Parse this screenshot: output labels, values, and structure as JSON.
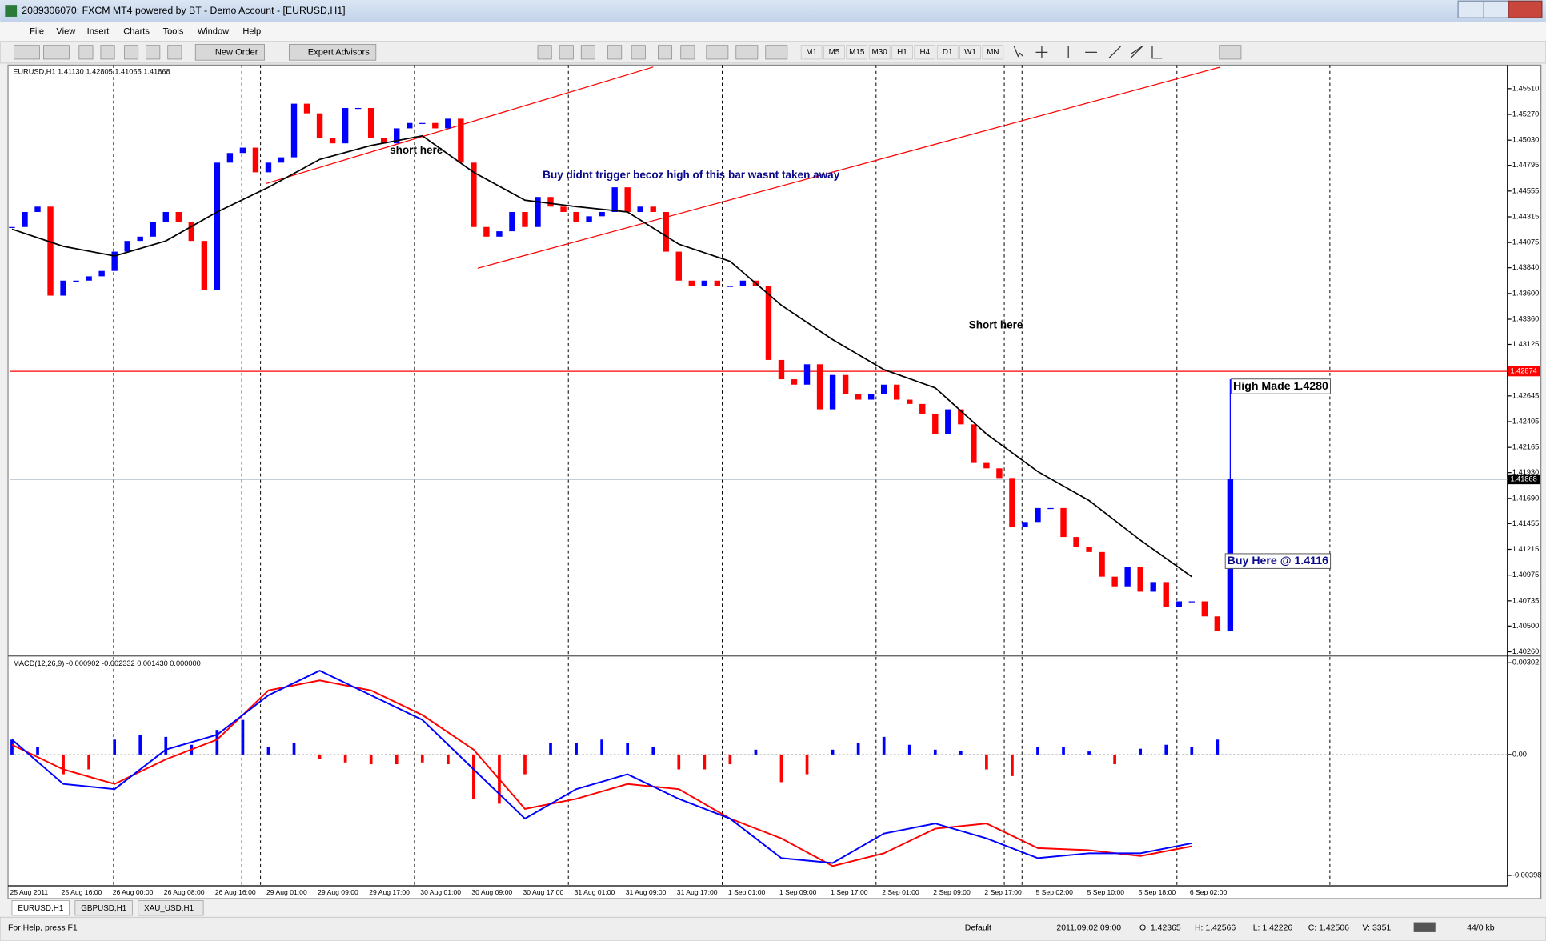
{
  "window": {
    "title": "2089306070: FXCM MT4 powered by BT - Demo Account - [EURUSD,H1]"
  },
  "menu": [
    "File",
    "View",
    "Insert",
    "Charts",
    "Tools",
    "Window",
    "Help"
  ],
  "toolbar": {
    "buttons": [
      "New Order",
      "Expert Advisors"
    ],
    "timeframes": [
      "M1",
      "M5",
      "M15",
      "M30",
      "H1",
      "H4",
      "D1",
      "W1",
      "MN"
    ]
  },
  "chart_data": [
    {
      "type": "candlestick",
      "header": "EURUSD,H1  1.41130 1.42805 1.41065 1.41868",
      "x_labels": [
        "25 Aug 2011",
        "25 Aug 16:00",
        "26 Aug 00:00",
        "26 Aug 08:00",
        "26 Aug 16:00",
        "29 Aug 01:00",
        "29 Aug 09:00",
        "29 Aug 17:00",
        "30 Aug 01:00",
        "30 Aug 09:00",
        "30 Aug 17:00",
        "31 Aug 01:00",
        "31 Aug 09:00",
        "31 Aug 17:00",
        "1 Sep 01:00",
        "1 Sep 09:00",
        "1 Sep 17:00",
        "2 Sep 01:00",
        "2 Sep 09:00",
        "2 Sep 17:00",
        "5 Sep 02:00",
        "5 Sep 10:00",
        "5 Sep 18:00",
        "6 Sep 02:00"
      ],
      "close": [
        1.4422,
        1.4436,
        1.4441,
        1.4358,
        1.4372,
        1.4372,
        1.4376,
        1.4381,
        1.4399,
        1.4409,
        1.4413,
        1.4427,
        1.4436,
        1.4427,
        1.4409,
        1.4363,
        1.4482,
        1.4491,
        1.4496,
        1.4473,
        1.4482,
        1.4487,
        1.4537,
        1.4528,
        1.4505,
        1.45,
        1.4533,
        1.4533,
        1.4505,
        1.45,
        1.4514,
        1.4519,
        1.4519,
        1.4514,
        1.4523,
        1.4482,
        1.4422,
        1.4413,
        1.4418,
        1.4436,
        1.4422,
        1.445,
        1.4441,
        1.4436,
        1.4427,
        1.4432,
        1.4436,
        1.4459,
        1.4436,
        1.4441,
        1.4436,
        1.4399,
        1.4372,
        1.4367,
        1.4372,
        1.4367,
        1.4367,
        1.4372,
        1.4367,
        1.4298,
        1.428,
        1.4275,
        1.4294,
        1.4252,
        1.4284,
        1.4266,
        1.4261,
        1.4266,
        1.4275,
        1.4261,
        1.4257,
        1.4248,
        1.4229,
        1.4252,
        1.4238,
        1.4202,
        1.4197,
        1.4188,
        1.4142,
        1.4147,
        1.416,
        1.416,
        1.4133,
        1.4124,
        1.4119,
        1.4096,
        1.4087,
        1.4105,
        1.4082,
        1.4091,
        1.4068,
        1.4073,
        1.4073,
        1.4059,
        1.4045,
        1.41868
      ],
      "last_bar_high": 1.428,
      "ma": [
        1.442,
        1.4404,
        1.4395,
        1.4409,
        1.4436,
        1.4459,
        1.4485,
        1.4498,
        1.4507,
        1.4473,
        1.4447,
        1.4441,
        1.4436,
        1.4406,
        1.439,
        1.4349,
        1.4317,
        1.4289,
        1.4272,
        1.4229,
        1.4194,
        1.4167,
        1.413,
        1.4096
      ],
      "ylim": [
        1.4023,
        1.4573
      ],
      "yticks": [
        {
          "value": 1.4551,
          "label": "1.45510"
        },
        {
          "value": 1.4527,
          "label": "1.45270"
        },
        {
          "value": 1.4503,
          "label": "1.45030"
        },
        1.44795,
        1.44555,
        1.44315,
        1.44075,
        {
          "value": 1.4384,
          "label": "1.43840"
        },
        {
          "value": 1.436,
          "label": "1.43600"
        },
        {
          "value": 1.4336,
          "label": "1.43360"
        },
        1.43125,
        1.42645,
        1.42405,
        1.42165,
        {
          "value": 1.4193,
          "label": "1.41930"
        },
        {
          "value": 1.4169,
          "label": "1.41690"
        },
        1.41455,
        1.41215,
        1.40975,
        1.40735,
        {
          "value": 1.405,
          "label": "1.40500"
        },
        {
          "value": 1.4026,
          "label": "1.40260"
        }
      ],
      "hlines": [
        {
          "value": 1.42874,
          "color": "#ff0000"
        },
        {
          "value": 1.41868,
          "color": "#9fb4c8"
        }
      ],
      "annotations": [
        "short here",
        "Buy didnt trigger becoz high of this bar wasnt taken away",
        "Short here",
        "High Made 1.4280",
        "Buy Here @ 1.4116"
      ],
      "colors": {
        "up": "#0000ff",
        "down": "#ff0000",
        "ma": "#000000"
      }
    },
    {
      "type": "macd",
      "header": "MACD(12,26,9) -0.000902 -0.002332 0.001430 0.000000",
      "histogram": [
        0.00049,
        0.00026,
        -0.00065,
        -0.00049,
        0.00049,
        0.00065,
        0.00058,
        0.00032,
        0.00081,
        0.00114,
        0.00026,
        0.00039,
        -0.00016,
        -0.00026,
        -0.00032,
        -0.00032,
        -0.00026,
        -0.00032,
        -0.00146,
        -0.00162,
        -0.00065,
        0.00039,
        0.00039,
        0.00049,
        0.00039,
        0.00026,
        -0.00049,
        -0.00049,
        -0.00032,
        0.00016,
        -0.00091,
        -0.00065,
        0.00016,
        0.00039,
        0.00058,
        0.00032,
        0.00016,
        0.00013,
        -0.00049,
        -0.00071,
        0.00026,
        0.00026,
        0.0001,
        -0.00032,
        0.00019,
        0.00032,
        0.00026,
        0.00049
      ],
      "macd": [
        0.00049,
        -0.00097,
        -0.00114,
        0.00016,
        0.00065,
        0.00195,
        0.00276,
        0.00195,
        0.00114,
        -0.00049,
        -0.00211,
        -0.00114,
        -0.00065,
        -0.00146,
        -0.00211,
        -0.00341,
        -0.00357,
        -0.0026,
        -0.00227,
        -0.00276,
        -0.00341,
        -0.00325,
        -0.00325,
        -0.00292
      ],
      "signal": [
        0.00032,
        -0.00049,
        -0.00097,
        -0.00016,
        0.00049,
        0.00211,
        0.00244,
        0.00211,
        0.0013,
        0.00016,
        -0.00179,
        -0.00146,
        -0.00097,
        -0.00114,
        -0.00211,
        -0.00276,
        -0.00367,
        -0.00325,
        -0.00244,
        -0.00227,
        -0.00308,
        -0.00315,
        -0.00334,
        -0.00302
      ],
      "ylim": [
        -0.00432,
        0.00321
      ],
      "yticks": [
        0.00302,
        {
          "value": 0,
          "label": "0.00"
        },
        -0.00398
      ],
      "colors": {
        "up": "#0000ff",
        "down": "#ff0000",
        "macd": "#0000ff",
        "signal": "#ff0000"
      }
    }
  ],
  "tabs": [
    "EURUSD,H1",
    "GBPUSD,H1",
    "XAU_USD,H1"
  ],
  "status": [
    "For Help, press F1",
    "Default",
    "2011.09.02 09:00",
    "O: 1.42365",
    "H: 1.42566",
    "L: 1.42226",
    "C: 1.42506",
    "V: 3351",
    "44/0 kb"
  ]
}
